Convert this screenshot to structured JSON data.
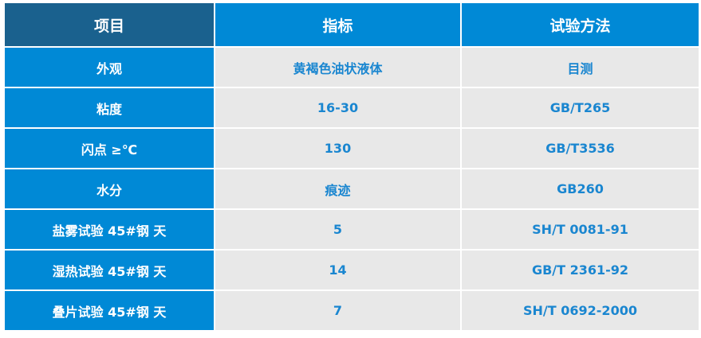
{
  "colors": {
    "header_first": "#1a618e",
    "header": "#0089d6",
    "label_cell": "#0089d6",
    "data_cell": "#e8e8e8",
    "data_text": "#1a86d0"
  },
  "headers": [
    "项目",
    "指标",
    "试验方法"
  ],
  "rows": [
    [
      "外观",
      "黄褐色油状液体",
      "目测"
    ],
    [
      "粘度",
      "16-30",
      "GB/T265"
    ],
    [
      "闪点 ≥℃",
      "130",
      "GB/T3536"
    ],
    [
      "水分",
      "痕迹",
      "GB260"
    ],
    [
      "盐雾试验 45#钢 天",
      "5",
      "SH/T 0081-91"
    ],
    [
      "湿热试验 45#钢 天",
      "14",
      "GB/T 2361-92"
    ],
    [
      "叠片试验 45#钢 天",
      "7",
      "SH/T 0692-2000"
    ]
  ]
}
